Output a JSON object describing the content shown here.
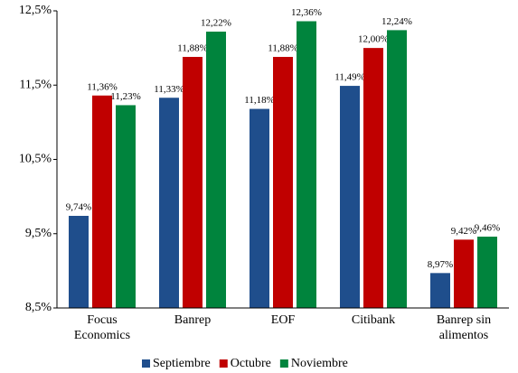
{
  "chart_data": {
    "type": "bar",
    "categories": [
      "Focus Economics",
      "Banrep",
      "EOF",
      "Citibank",
      "Banrep sin alimentos"
    ],
    "series": [
      {
        "name": "Septiembre",
        "color": "#1f4e8c",
        "values": [
          9.74,
          11.33,
          11.18,
          11.49,
          8.97
        ],
        "value_labels": [
          "9,74%",
          "11,33%",
          "11,18%",
          "11,49%",
          "8,97%"
        ]
      },
      {
        "name": "Octubre",
        "color": "#c00000",
        "values": [
          11.36,
          11.88,
          11.88,
          12.0,
          9.42
        ],
        "value_labels": [
          "11,36%",
          "11,88%",
          "11,88%",
          "12,00%",
          "9,42%"
        ]
      },
      {
        "name": "Noviembre",
        "color": "#00843d",
        "values": [
          11.23,
          12.22,
          12.36,
          12.24,
          9.46
        ],
        "value_labels": [
          "11,23%",
          "12,22%",
          "12,36%",
          "12,24%",
          "9,46%"
        ]
      }
    ],
    "ylim": [
      8.5,
      12.5
    ],
    "yticks": [
      {
        "value": 8.5,
        "label": "8,5%"
      },
      {
        "value": 9.5,
        "label": "9,5%"
      },
      {
        "value": 10.5,
        "label": "10,5%"
      },
      {
        "value": 11.5,
        "label": "11,5%"
      },
      {
        "value": 12.5,
        "label": "12,5%"
      }
    ],
    "grid": false,
    "legend": "bottom"
  }
}
